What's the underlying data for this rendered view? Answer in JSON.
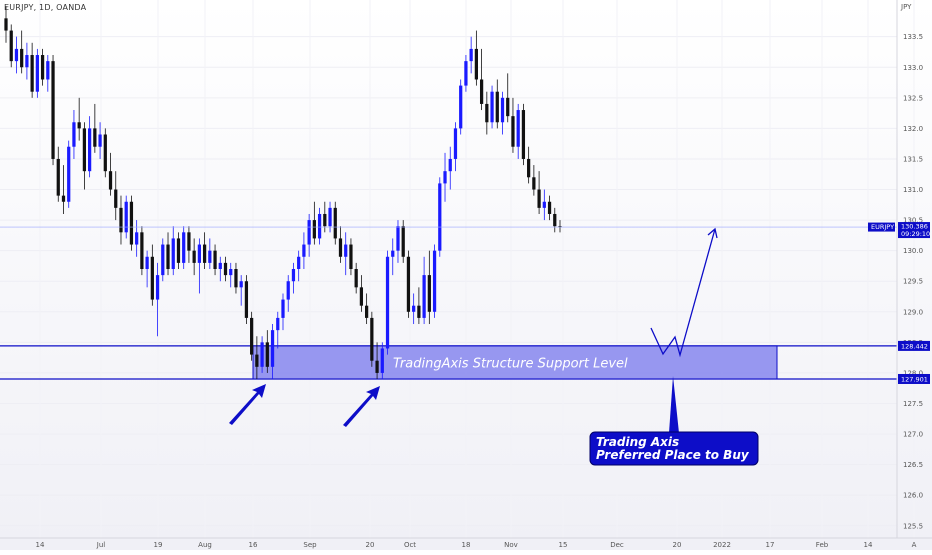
{
  "header": {
    "symbol": "EURJPY, 1D, OANDA"
  },
  "chart_data": {
    "type": "candlestick",
    "title": "",
    "currency_label": "JPY",
    "ylim": [
      125.3,
      134.1
    ],
    "y_ticks": [
      125.5,
      126.0,
      126.5,
      127.0,
      127.5,
      128.0,
      128.5,
      129.0,
      129.5,
      130.0,
      130.5,
      131.0,
      131.5,
      132.0,
      132.5,
      133.0,
      133.5
    ],
    "x_tick_labels": [
      "14",
      "Jul",
      "19",
      "Aug",
      "16",
      "Sep",
      "20",
      "Oct",
      "18",
      "Nov",
      "15",
      "Dec",
      "20",
      "2022",
      "17",
      "Feb",
      "14",
      "A"
    ],
    "last_price": {
      "symbol": "EURJPY",
      "price": "130.386",
      "countdown": "09:29:10",
      "value": 130.386
    },
    "levels": [
      {
        "label": "128.442",
        "value": 128.442
      },
      {
        "label": "127.901",
        "value": 127.901
      }
    ],
    "support_zone": {
      "label": "TradingAxis Structure Support Level",
      "from": 127.901,
      "to": 128.442
    },
    "callout": {
      "line1": "Trading Axis",
      "line2": "Preferred Place to Buy"
    },
    "colors": {
      "up": "#1a1aff",
      "down": "#111111",
      "zone_fill": "#8080ee",
      "accent": "#0d0dc8",
      "last_price_line": "#9aa5ff"
    },
    "candles": [
      [
        133.8,
        134.0,
        133.4,
        133.6
      ],
      [
        133.6,
        133.7,
        133.0,
        133.1
      ],
      [
        133.1,
        133.5,
        132.9,
        133.3
      ],
      [
        133.3,
        133.6,
        132.9,
        133.0
      ],
      [
        133.0,
        133.4,
        132.8,
        133.2
      ],
      [
        133.2,
        133.4,
        132.5,
        132.6
      ],
      [
        132.6,
        133.3,
        132.5,
        133.2
      ],
      [
        133.2,
        133.3,
        132.7,
        132.8
      ],
      [
        132.8,
        133.2,
        132.6,
        133.1
      ],
      [
        133.1,
        133.2,
        131.4,
        131.5
      ],
      [
        131.5,
        131.7,
        130.8,
        130.9
      ],
      [
        130.9,
        131.4,
        130.6,
        130.8
      ],
      [
        130.8,
        131.8,
        130.7,
        131.7
      ],
      [
        131.7,
        132.3,
        131.5,
        132.1
      ],
      [
        132.1,
        132.5,
        131.8,
        132.0
      ],
      [
        132.0,
        132.1,
        131.0,
        131.3
      ],
      [
        131.3,
        132.2,
        131.2,
        132.0
      ],
      [
        132.0,
        132.4,
        131.6,
        131.7
      ],
      [
        131.7,
        132.1,
        131.5,
        131.9
      ],
      [
        131.9,
        132.0,
        131.2,
        131.3
      ],
      [
        131.3,
        131.6,
        130.9,
        131.0
      ],
      [
        131.0,
        131.3,
        130.5,
        130.7
      ],
      [
        130.7,
        130.9,
        130.1,
        130.3
      ],
      [
        130.3,
        130.9,
        130.2,
        130.8
      ],
      [
        130.8,
        130.9,
        130.0,
        130.1
      ],
      [
        130.1,
        130.5,
        129.9,
        130.3
      ],
      [
        130.3,
        130.4,
        129.6,
        129.7
      ],
      [
        129.7,
        130.0,
        129.4,
        129.9
      ],
      [
        129.9,
        130.1,
        129.1,
        129.2
      ],
      [
        129.2,
        129.8,
        128.6,
        129.6
      ],
      [
        129.6,
        130.2,
        129.5,
        130.1
      ],
      [
        130.1,
        130.3,
        129.6,
        129.7
      ],
      [
        129.7,
        130.4,
        129.6,
        130.2
      ],
      [
        130.2,
        130.3,
        129.7,
        129.8
      ],
      [
        129.8,
        130.4,
        129.7,
        130.3
      ],
      [
        130.3,
        130.4,
        129.8,
        130.0
      ],
      [
        130.0,
        130.2,
        129.6,
        129.8
      ],
      [
        129.8,
        130.2,
        129.3,
        130.1
      ],
      [
        130.1,
        130.3,
        129.7,
        129.8
      ],
      [
        129.8,
        130.2,
        129.7,
        130.0
      ],
      [
        130.0,
        130.1,
        129.6,
        129.7
      ],
      [
        129.7,
        129.9,
        129.5,
        129.8
      ],
      [
        129.8,
        129.9,
        129.5,
        129.6
      ],
      [
        129.6,
        129.8,
        129.4,
        129.7
      ],
      [
        129.7,
        129.8,
        129.3,
        129.4
      ],
      [
        129.4,
        129.6,
        129.1,
        129.5
      ],
      [
        129.5,
        129.6,
        128.8,
        128.9
      ],
      [
        128.9,
        129.0,
        128.2,
        128.3
      ],
      [
        128.3,
        128.6,
        127.9,
        128.1
      ],
      [
        128.1,
        128.6,
        128.0,
        128.5
      ],
      [
        128.5,
        128.7,
        128.0,
        128.1
      ],
      [
        128.1,
        128.8,
        127.9,
        128.7
      ],
      [
        128.7,
        129.0,
        128.4,
        128.9
      ],
      [
        128.9,
        129.3,
        128.7,
        129.2
      ],
      [
        129.2,
        129.6,
        129.0,
        129.5
      ],
      [
        129.5,
        129.8,
        129.3,
        129.7
      ],
      [
        129.7,
        130.0,
        129.5,
        129.9
      ],
      [
        129.9,
        130.3,
        129.7,
        130.1
      ],
      [
        130.1,
        130.6,
        129.9,
        130.5
      ],
      [
        130.5,
        130.8,
        130.1,
        130.2
      ],
      [
        130.2,
        130.7,
        130.1,
        130.6
      ],
      [
        130.6,
        130.8,
        130.3,
        130.4
      ],
      [
        130.4,
        130.8,
        130.3,
        130.7
      ],
      [
        130.7,
        130.8,
        130.1,
        130.2
      ],
      [
        130.2,
        130.4,
        129.8,
        129.9
      ],
      [
        129.9,
        130.3,
        129.6,
        130.1
      ],
      [
        130.1,
        130.2,
        129.6,
        129.7
      ],
      [
        129.7,
        129.8,
        129.3,
        129.4
      ],
      [
        129.4,
        129.6,
        129.0,
        129.1
      ],
      [
        129.1,
        129.3,
        128.8,
        128.9
      ],
      [
        128.9,
        129.0,
        128.1,
        128.2
      ],
      [
        128.2,
        128.5,
        127.9,
        128.0
      ],
      [
        128.0,
        128.5,
        127.9,
        128.4
      ],
      [
        128.4,
        130.0,
        128.3,
        129.9
      ],
      [
        129.9,
        130.2,
        129.6,
        130.0
      ],
      [
        130.0,
        130.5,
        129.8,
        130.4
      ],
      [
        130.4,
        130.5,
        129.8,
        129.9
      ],
      [
        129.9,
        130.0,
        128.9,
        129.0
      ],
      [
        129.0,
        129.3,
        128.8,
        129.1
      ],
      [
        129.1,
        129.4,
        128.8,
        128.9
      ],
      [
        128.9,
        129.9,
        128.8,
        129.6
      ],
      [
        129.6,
        130.0,
        128.8,
        129.0
      ],
      [
        129.0,
        130.1,
        128.9,
        130.0
      ],
      [
        130.0,
        131.2,
        129.9,
        131.1
      ],
      [
        131.1,
        131.6,
        130.8,
        131.3
      ],
      [
        131.3,
        131.7,
        131.0,
        131.5
      ],
      [
        131.5,
        132.1,
        131.3,
        132.0
      ],
      [
        132.0,
        132.8,
        131.9,
        132.7
      ],
      [
        132.7,
        133.2,
        132.6,
        133.1
      ],
      [
        133.1,
        133.5,
        132.9,
        133.3
      ],
      [
        133.3,
        133.6,
        132.7,
        132.8
      ],
      [
        132.8,
        133.3,
        132.3,
        132.4
      ],
      [
        132.4,
        132.6,
        131.9,
        132.1
      ],
      [
        132.1,
        132.7,
        132.0,
        132.6
      ],
      [
        132.6,
        132.8,
        132.0,
        132.1
      ],
      [
        132.1,
        132.6,
        131.9,
        132.5
      ],
      [
        132.5,
        132.9,
        132.1,
        132.2
      ],
      [
        132.2,
        132.5,
        131.6,
        131.7
      ],
      [
        131.7,
        132.4,
        131.5,
        132.3
      ],
      [
        132.3,
        132.4,
        131.4,
        131.5
      ],
      [
        131.5,
        131.7,
        131.1,
        131.2
      ],
      [
        131.2,
        131.4,
        130.9,
        131.0
      ],
      [
        131.0,
        131.3,
        130.6,
        130.7
      ],
      [
        130.7,
        131.0,
        130.5,
        130.8
      ],
      [
        130.8,
        130.9,
        130.5,
        130.6
      ],
      [
        130.6,
        130.7,
        130.3,
        130.4
      ],
      [
        130.4,
        130.5,
        130.3,
        130.386
      ]
    ]
  }
}
